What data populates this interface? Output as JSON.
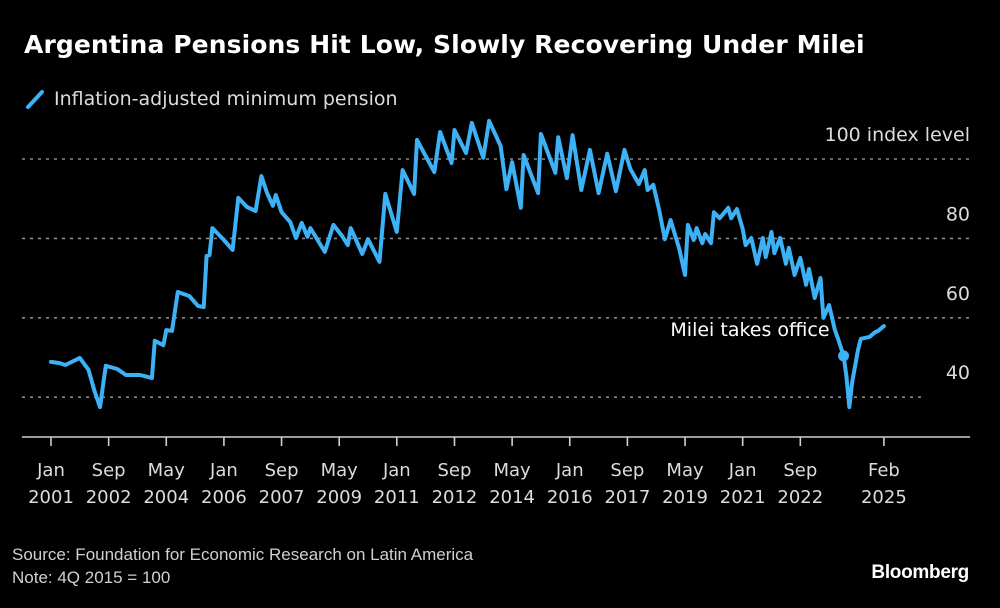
{
  "header": {
    "title": "Argentina Pensions Hit Low, Slowly Recovering Under Milei"
  },
  "footer": {
    "source": "Source: Foundation for Economic Research on Latin America",
    "note": "Note: 4Q 2015 = 100",
    "brand": "Bloomberg"
  },
  "chart_data": {
    "type": "line",
    "title": "Argentina Pensions Hit Low, Slowly Recovering Under Milei",
    "xlabel": "",
    "ylabel": "",
    "ylim": [
      34,
      110
    ],
    "grid": true,
    "legend_position": "top-left",
    "y_ticks": [
      {
        "value": 100,
        "label": "100 index level"
      },
      {
        "value": 80,
        "label": "80"
      },
      {
        "value": 60,
        "label": "60"
      },
      {
        "value": 40,
        "label": "40"
      }
    ],
    "x_unit": "months since Jan 2001",
    "x_range": [
      0,
      300
    ],
    "x_ticks": [
      {
        "month": 0,
        "line1": "Jan",
        "line2": "2001"
      },
      {
        "month": 20,
        "line1": "Sep",
        "line2": "2002"
      },
      {
        "month": 40,
        "line1": "May",
        "line2": "2004"
      },
      {
        "month": 60,
        "line1": "Jan",
        "line2": "2006"
      },
      {
        "month": 80,
        "line1": "Sep",
        "line2": "2007"
      },
      {
        "month": 100,
        "line1": "May",
        "line2": "2009"
      },
      {
        "month": 120,
        "line1": "Jan",
        "line2": "2011"
      },
      {
        "month": 140,
        "line1": "Sep",
        "line2": "2012"
      },
      {
        "month": 160,
        "line1": "May",
        "line2": "2014"
      },
      {
        "month": 180,
        "line1": "Jan",
        "line2": "2016"
      },
      {
        "month": 200,
        "line1": "Sep",
        "line2": "2017"
      },
      {
        "month": 220,
        "line1": "May",
        "line2": "2019"
      },
      {
        "month": 240,
        "line1": "Jan",
        "line2": "2021"
      },
      {
        "month": 260,
        "line1": "Sep",
        "line2": "2022"
      },
      {
        "month": 289,
        "line1": "Feb",
        "line2": "2025"
      }
    ],
    "series": [
      {
        "name": "Inflation-adjusted minimum pension",
        "color": "#3db1f5",
        "x": [
          0,
          3,
          5,
          10,
          13,
          15,
          17,
          19,
          23,
          26,
          31,
          35,
          36,
          39,
          40,
          42,
          44,
          48,
          51,
          53,
          54,
          55,
          56,
          60,
          63,
          65,
          68,
          71,
          73,
          75,
          77,
          78,
          80,
          83,
          85,
          87,
          89,
          90,
          95,
          98,
          101,
          103,
          104,
          108,
          110,
          114,
          116,
          120,
          122,
          126,
          127,
          133,
          135,
          139,
          140,
          144,
          146,
          150,
          152,
          156,
          158,
          160,
          163,
          164,
          169,
          170,
          175,
          176,
          179,
          181,
          184,
          187,
          190,
          193,
          196,
          199,
          201,
          204,
          206,
          207,
          209,
          211,
          213,
          215,
          218,
          220,
          221,
          223,
          224,
          226,
          227,
          229,
          230,
          232,
          235,
          236,
          238,
          240,
          241,
          243,
          245,
          247,
          248,
          250,
          251,
          253,
          255,
          256,
          258,
          260,
          262,
          263,
          265,
          267,
          268,
          270,
          272,
          273,
          275,
          276,
          277,
          278,
          280,
          281,
          284,
          286,
          287,
          289
        ],
        "values": [
          48.9,
          48.6,
          48.1,
          49.9,
          46.9,
          41.8,
          37.5,
          47.9,
          47.1,
          45.6,
          45.6,
          44.8,
          54.2,
          53.1,
          56.9,
          56.7,
          66.5,
          65.5,
          63.0,
          62.7,
          75.6,
          75.8,
          82.6,
          79.6,
          77.1,
          90.2,
          87.9,
          86.9,
          95.7,
          91.4,
          88.2,
          90.9,
          86.6,
          84.1,
          80.1,
          83.9,
          80.4,
          82.6,
          76.6,
          83.4,
          80.6,
          78.3,
          82.6,
          76.1,
          79.8,
          74.1,
          91.2,
          81.6,
          97.2,
          91.2,
          104.8,
          96.7,
          106.8,
          99.0,
          107.3,
          101.5,
          109.1,
          100.3,
          109.6,
          103.3,
          92.4,
          99.2,
          87.7,
          101.0,
          91.4,
          106.3,
          96.5,
          105.5,
          95.2,
          106.0,
          92.2,
          102.3,
          91.4,
          101.3,
          91.9,
          102.3,
          97.5,
          93.7,
          97.2,
          92.2,
          93.5,
          87.2,
          79.8,
          84.6,
          77.3,
          70.8,
          83.4,
          79.6,
          82.6,
          78.8,
          81.1,
          78.8,
          86.6,
          85.1,
          87.7,
          85.1,
          87.4,
          82.4,
          78.3,
          80.1,
          73.6,
          80.1,
          75.3,
          81.6,
          76.3,
          80.1,
          73.6,
          77.6,
          70.8,
          75.1,
          68.3,
          72.3,
          65.0,
          70.0,
          60.0,
          63.2,
          56.9,
          54.9,
          50.4,
          45.3,
          37.5,
          43.8,
          51.9,
          54.7,
          55.2,
          56.4,
          56.7,
          57.9
        ]
      }
    ],
    "annotations": [
      {
        "label": "Milei takes office",
        "month": 275,
        "value": 50.4
      }
    ]
  }
}
